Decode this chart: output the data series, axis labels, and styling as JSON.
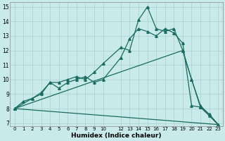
{
  "xlabel": "Humidex (Indice chaleur)",
  "bg_color": "#c8eaea",
  "line_color": "#1a6b60",
  "grid_color": "#b0d4d4",
  "xlim": [
    -0.5,
    23.5
  ],
  "ylim": [
    6.8,
    15.3
  ],
  "xticks": [
    0,
    1,
    2,
    3,
    4,
    5,
    6,
    7,
    8,
    9,
    10,
    12,
    13,
    14,
    15,
    16,
    17,
    18,
    19,
    20,
    21,
    22,
    23
  ],
  "yticks": [
    7,
    8,
    9,
    10,
    11,
    12,
    13,
    14,
    15
  ],
  "line1_x": [
    0,
    1,
    2,
    3,
    4,
    5,
    6,
    7,
    8,
    9,
    10,
    12,
    13,
    14,
    15,
    16,
    17,
    18,
    19,
    20,
    21,
    22,
    23
  ],
  "line1_y": [
    8.0,
    8.5,
    8.7,
    9.0,
    9.8,
    9.8,
    10.0,
    10.2,
    10.0,
    10.5,
    11.1,
    12.2,
    12.0,
    14.1,
    15.0,
    13.5,
    13.3,
    13.5,
    12.0,
    10.0,
    8.1,
    7.5,
    6.9
  ],
  "line2_x": [
    0,
    2,
    3,
    4,
    5,
    6,
    7,
    8,
    9,
    10,
    12,
    13,
    14,
    15,
    16,
    17,
    18,
    19,
    20,
    21,
    22,
    23
  ],
  "line2_y": [
    8.0,
    8.7,
    9.1,
    9.8,
    9.4,
    9.8,
    10.0,
    10.2,
    9.8,
    10.0,
    11.5,
    12.8,
    13.5,
    13.3,
    13.0,
    13.5,
    13.2,
    12.5,
    8.2,
    8.1,
    7.6,
    6.9
  ],
  "line3_x": [
    0,
    23
  ],
  "line3_y": [
    8.0,
    6.9
  ],
  "line4_x": [
    0,
    19,
    20,
    21,
    22,
    23
  ],
  "line4_y": [
    8.0,
    12.0,
    10.0,
    8.2,
    7.6,
    6.9
  ]
}
